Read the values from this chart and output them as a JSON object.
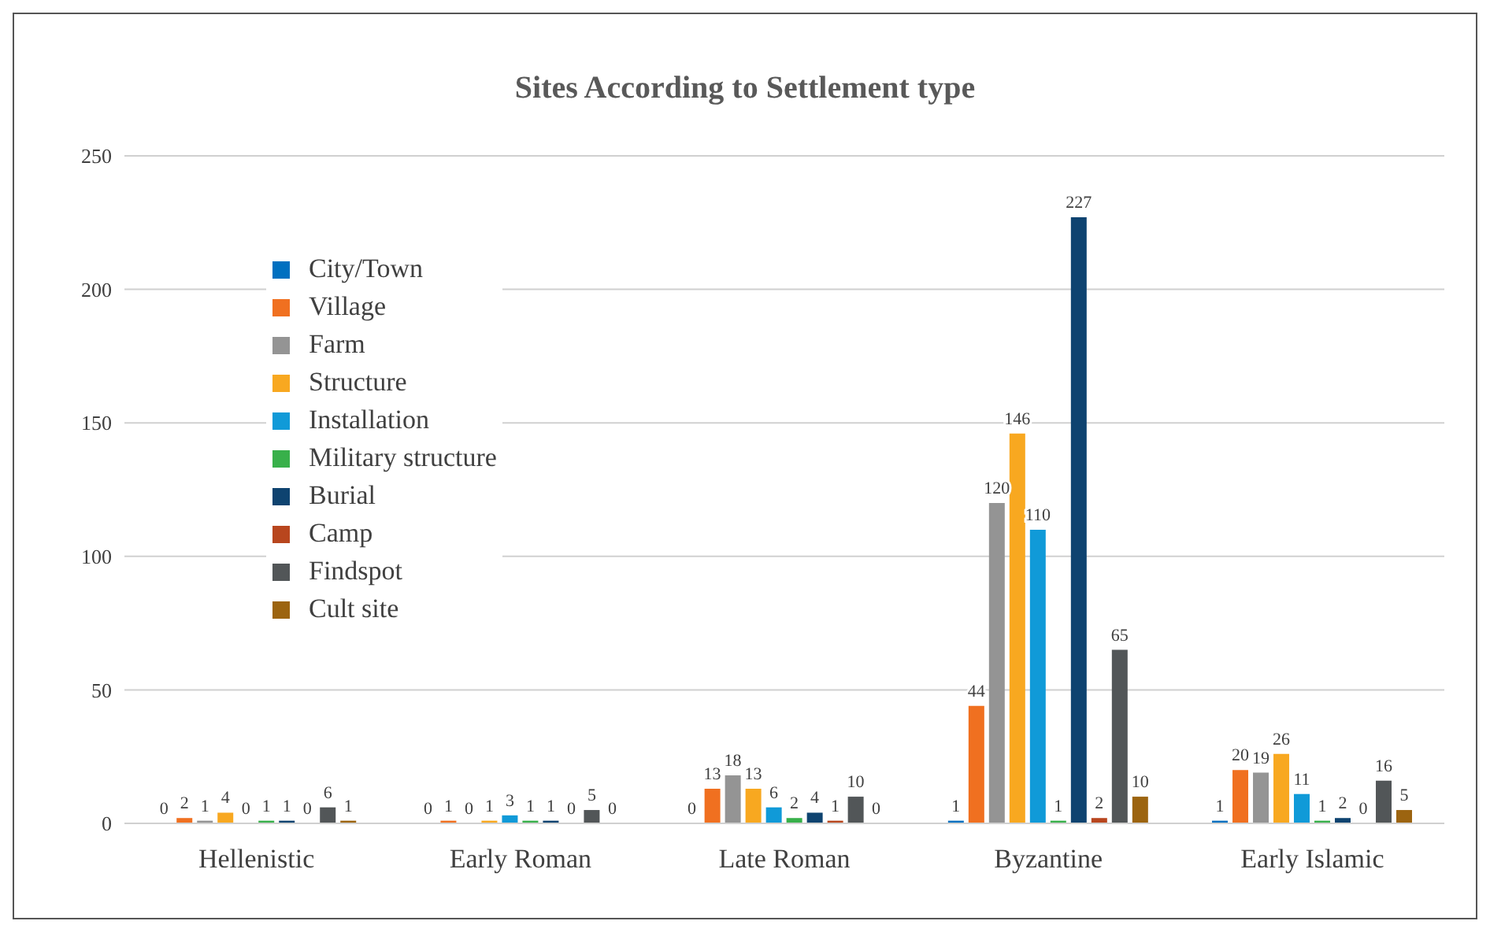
{
  "chart_data": {
    "type": "bar",
    "title": "Sites According to Settlement type",
    "categories": [
      "Hellenistic",
      "Early Roman",
      "Late Roman",
      "Byzantine",
      "Early Islamic"
    ],
    "series": [
      {
        "name": "City/Town",
        "color": "#0070c0",
        "values": [
          0,
          0,
          0,
          1,
          1
        ]
      },
      {
        "name": "Village",
        "color": "#f07020",
        "values": [
          2,
          1,
          13,
          44,
          20
        ]
      },
      {
        "name": "Farm",
        "color": "#949494",
        "values": [
          1,
          0,
          18,
          120,
          19
        ]
      },
      {
        "name": "Structure",
        "color": "#f8a820",
        "values": [
          4,
          1,
          13,
          146,
          26
        ]
      },
      {
        "name": "Installation",
        "color": "#109ad8",
        "values": [
          0,
          3,
          6,
          110,
          11
        ]
      },
      {
        "name": "Military structure",
        "color": "#38b04a",
        "values": [
          1,
          1,
          2,
          1,
          1
        ]
      },
      {
        "name": "Burial",
        "color": "#0e4370",
        "values": [
          1,
          1,
          4,
          227,
          2
        ]
      },
      {
        "name": "Camp",
        "color": "#b8461e",
        "values": [
          0,
          0,
          1,
          2,
          0
        ]
      },
      {
        "name": "Findspot",
        "color": "#525658",
        "values": [
          6,
          5,
          10,
          65,
          16
        ]
      },
      {
        "name": "Cult site",
        "color": "#9c6410",
        "values": [
          1,
          0,
          0,
          10,
          5
        ]
      }
    ],
    "ylim": [
      0,
      250
    ],
    "yticks": [
      0,
      50,
      100,
      150,
      200,
      250
    ],
    "grid": "y",
    "legend": "top left",
    "data_labels": true
  }
}
